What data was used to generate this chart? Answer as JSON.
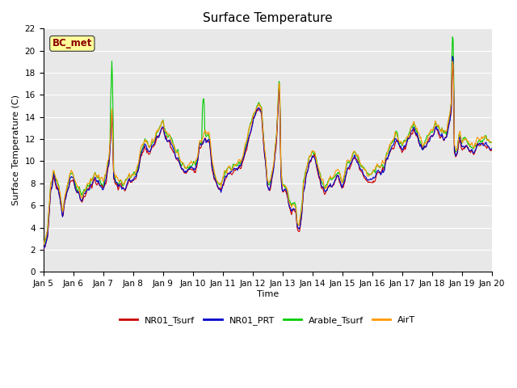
{
  "title": "Surface Temperature",
  "xlabel": "Time",
  "ylabel": "Surface Temperature (C)",
  "ylim": [
    0,
    22
  ],
  "colors": {
    "NR01_Tsurf": "#cc0000",
    "NR01_PRT": "#0000cc",
    "Arable_Tsurf": "#00cc00",
    "AirT": "#ff9900"
  },
  "background_color": "#e8e8e8",
  "bc_met_box_color": "#ffff99",
  "bc_met_text_color": "#8b0000",
  "grid_color": "white",
  "line_width": 0.8,
  "title_fontsize": 11,
  "label_fontsize": 8,
  "tick_fontsize": 7.5,
  "legend_fontsize": 8,
  "x_tick_labels": [
    "Jan 5",
    "Jan 6",
    "Jan 7",
    "Jan 8",
    "Jan 9",
    "Jan 10",
    "Jan 11",
    "Jan 12",
    "Jan 13",
    "Jan 14",
    "Jan 15",
    "Jan 16",
    "Jan 17",
    "Jan 18",
    "Jan 19",
    "Jan 20"
  ]
}
